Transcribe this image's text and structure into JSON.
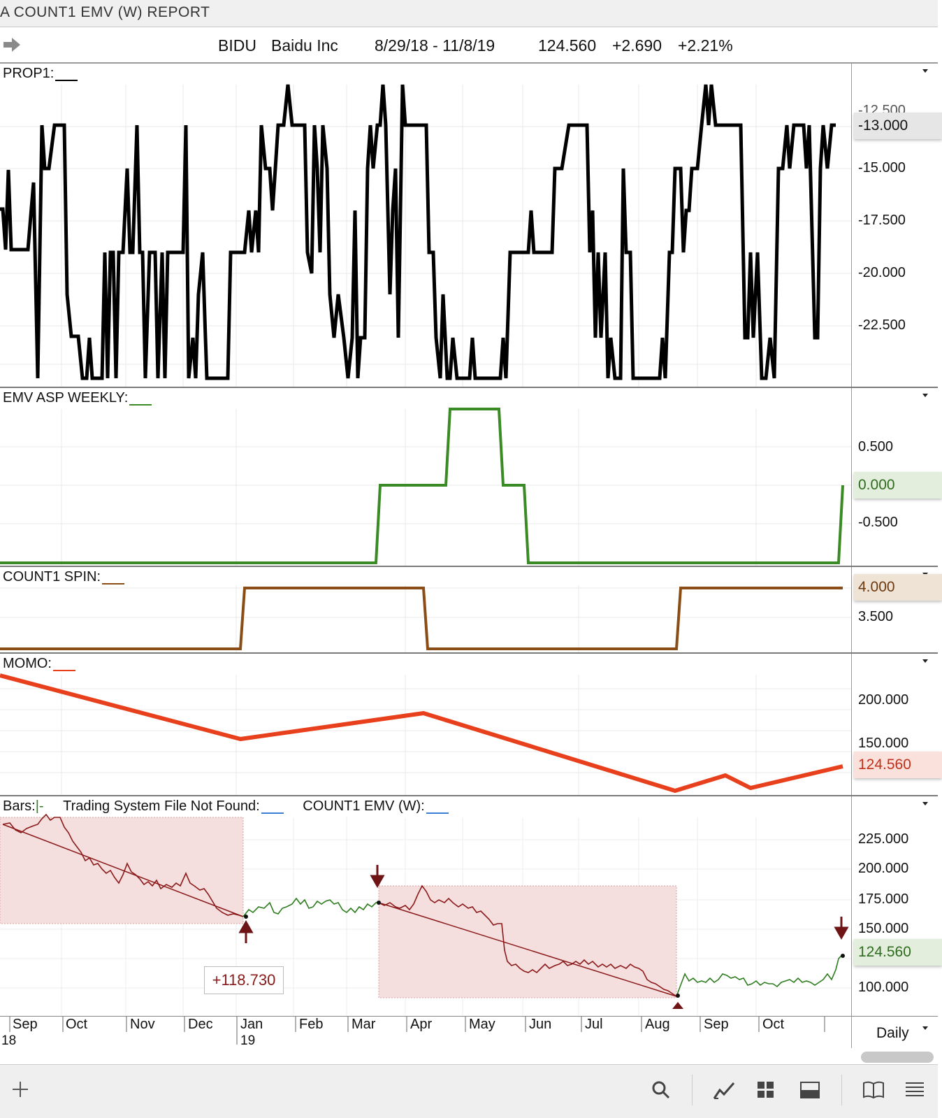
{
  "window": {
    "title": "A COUNT1 EMV (W)  REPORT"
  },
  "header": {
    "symbol": "BIDU",
    "company": "Baidu Inc",
    "date_range": "8/29/18 - 11/8/19",
    "price": "124.560",
    "change": "+2.690",
    "change_pct": "+2.21%"
  },
  "panes": {
    "prop1": {
      "label": "PROP1:",
      "line_color": "#000000",
      "axis": [
        "-13.000",
        "-15.000",
        "-17.500",
        "-20.000",
        "-22.500"
      ],
      "current": "-13.000",
      "partial_top_label": "-12.500"
    },
    "emv_asp": {
      "label": "EMV ASP WEEKLY:",
      "line_color": "#3a8a25",
      "axis": [
        "0.500",
        "-0.500"
      ],
      "current": "0.000"
    },
    "count1_spin": {
      "label": "COUNT1 SPIN:",
      "line_color": "#8b4d17",
      "axis": [
        "3.500"
      ],
      "current": "4.000"
    },
    "momo": {
      "label": "MOMO:",
      "line_color": "#e8401c",
      "axis": [
        "200.000",
        "150.000"
      ],
      "current": "124.560"
    },
    "bars": {
      "label": "Bars:",
      "bars_suffix": "|-",
      "ts_label": "Trading System File Not Found:",
      "count_label": "COUNT1 EMV (W):",
      "axis": [
        "225.000",
        "200.000",
        "175.000",
        "150.000",
        "100.000"
      ],
      "current": "124.560",
      "trade_profit": "+118.730",
      "colors": {
        "down": "#8b1a1a",
        "up": "#2e7d1e",
        "zone": "#f5dede"
      }
    }
  },
  "time_axis": {
    "months": [
      "Sep",
      "Oct",
      "Nov",
      "Dec",
      "Jan",
      "Feb",
      "Mar",
      "Apr",
      "May",
      "Jun",
      "Jul",
      "Aug",
      "Sep",
      "Oct"
    ],
    "years": [
      "18",
      "19"
    ],
    "interval": "Daily"
  },
  "toolbar": {
    "icons": [
      "add-icon",
      "search-icon",
      "chart-line-icon",
      "grid-icon",
      "panel-icon",
      "book-icon",
      "list-icon"
    ]
  }
}
